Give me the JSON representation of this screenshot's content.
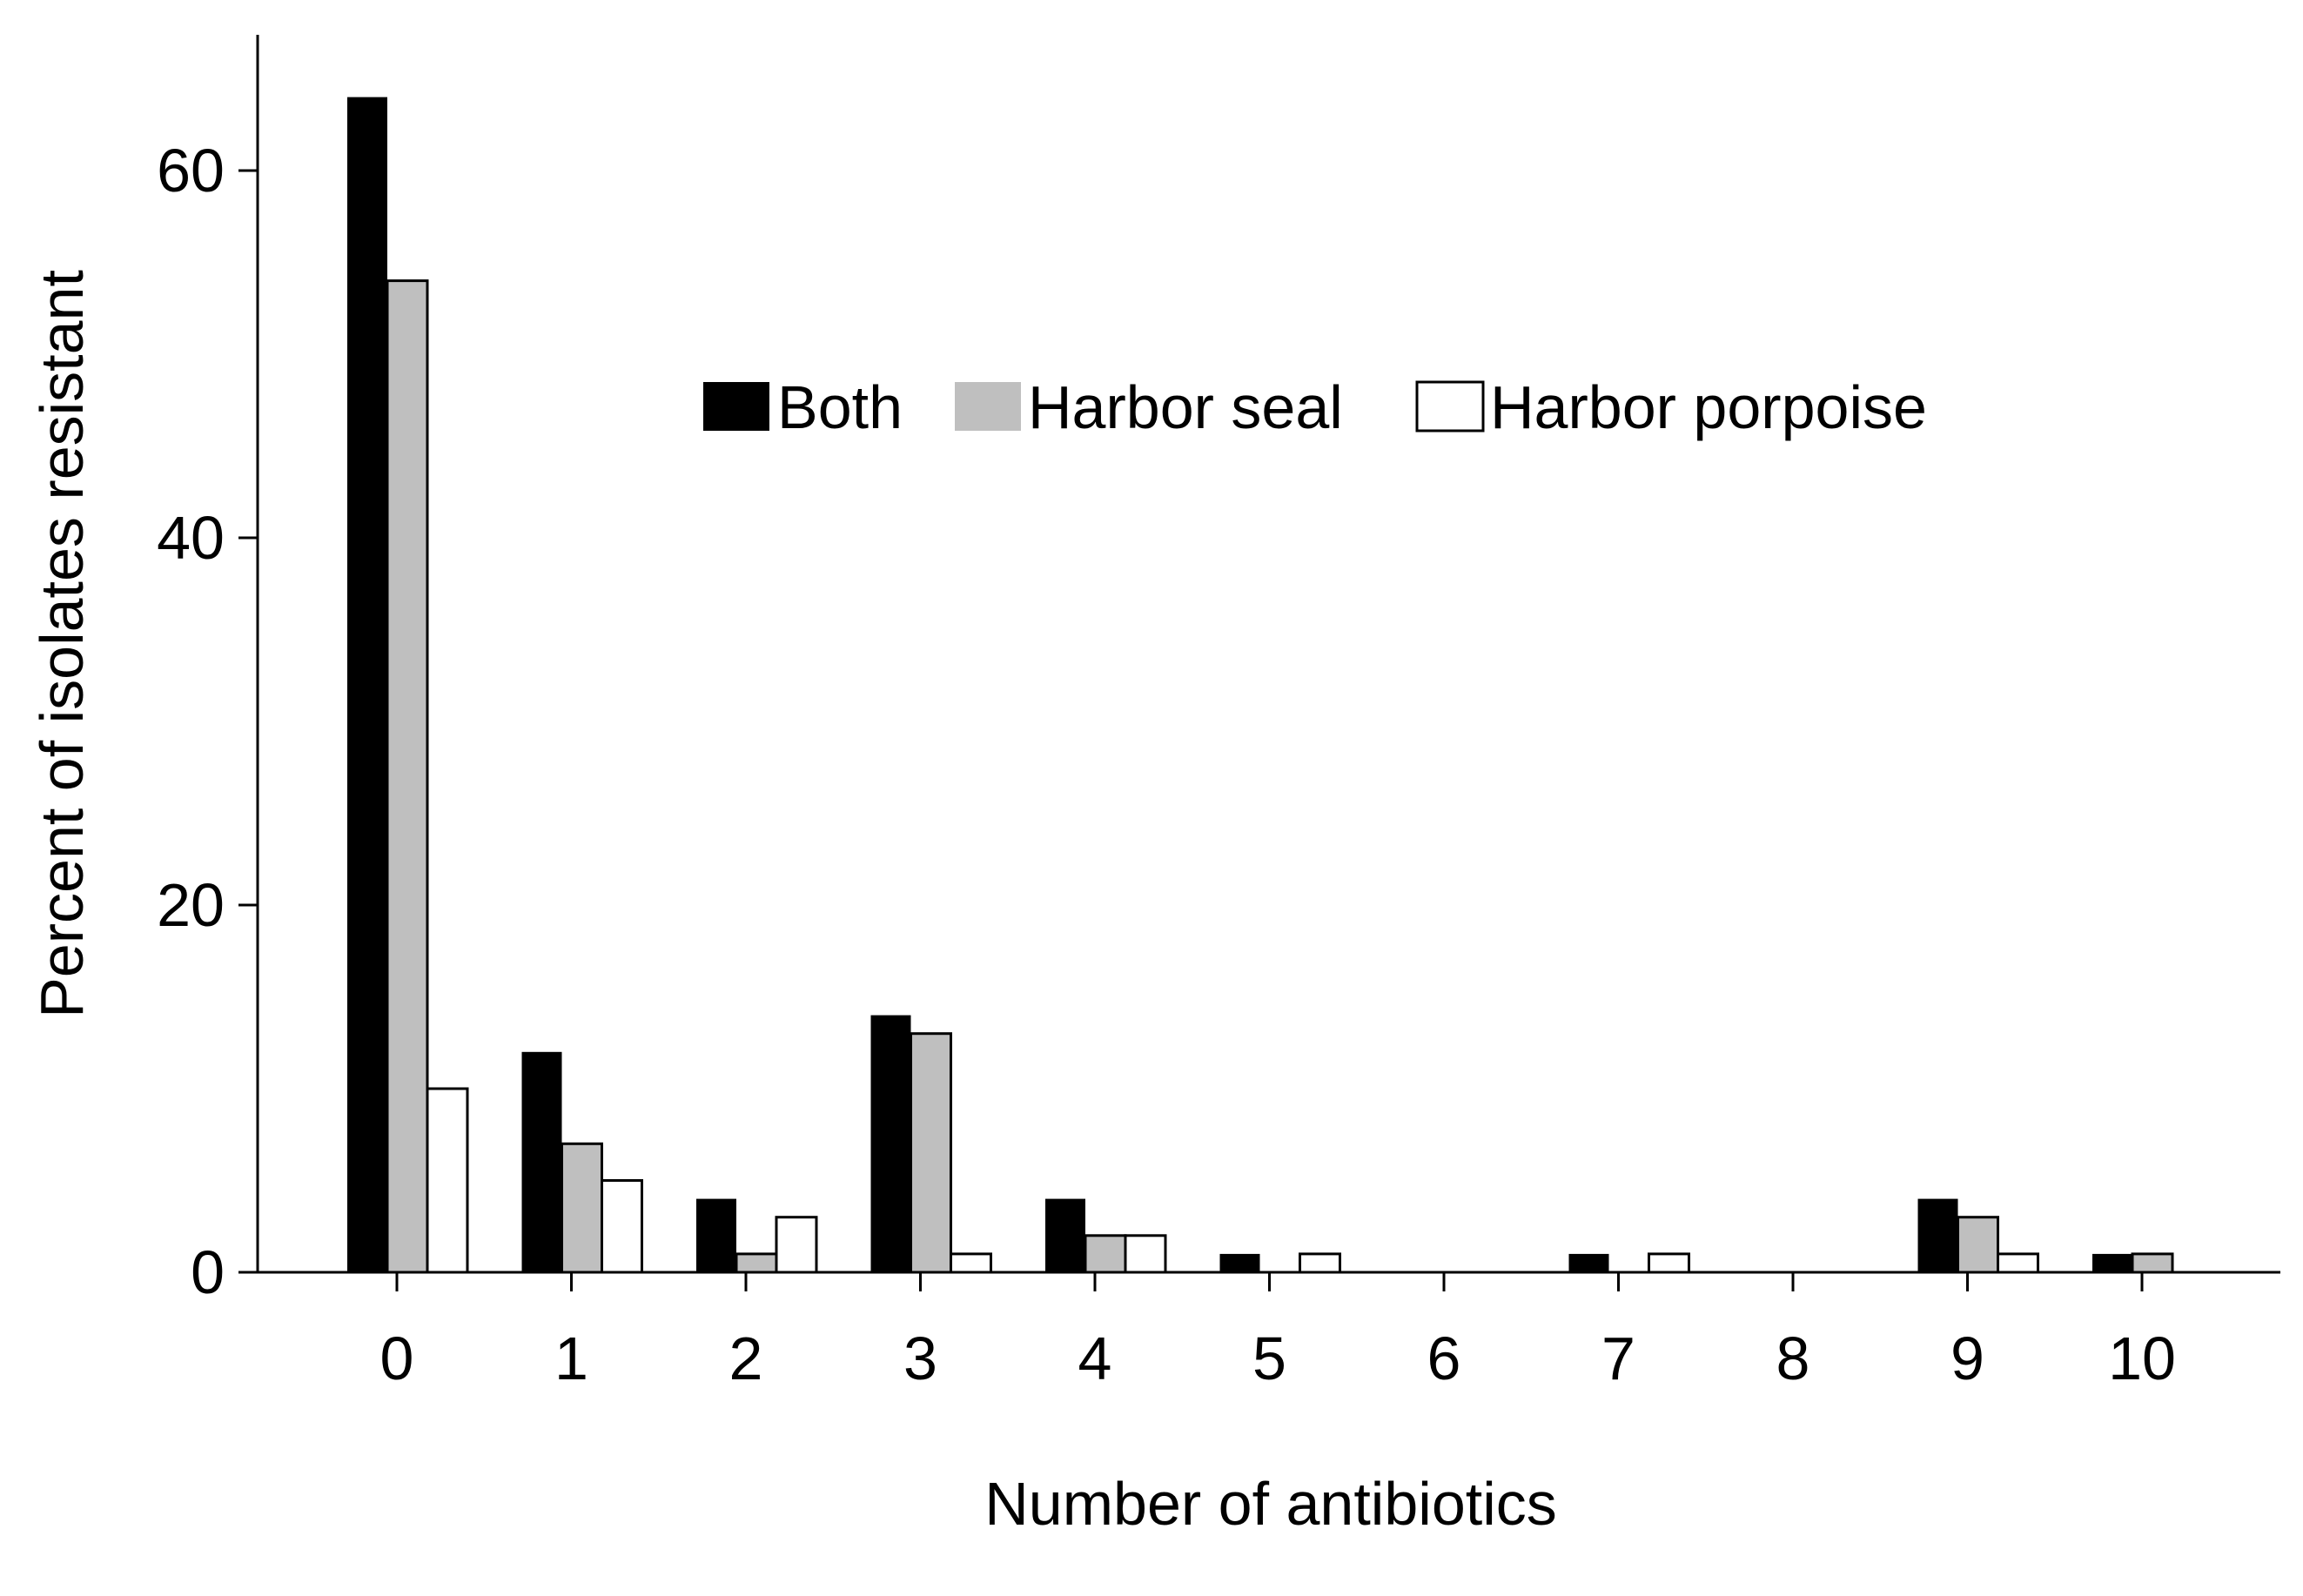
{
  "chart_data": {
    "type": "bar",
    "xlabel": "Number of antibiotics",
    "ylabel": "Percent of isolates resistant",
    "categories": [
      "0",
      "1",
      "2",
      "3",
      "4",
      "5",
      "6",
      "7",
      "8",
      "9",
      "10"
    ],
    "yticks": [
      "0",
      "20",
      "40",
      "60"
    ],
    "ylim": [
      0,
      67
    ],
    "legend_position": "top-center",
    "series": [
      {
        "name": "Both",
        "color": "#000000",
        "values": [
          64,
          12,
          4,
          14,
          4,
          1,
          0,
          1,
          0,
          4,
          1
        ]
      },
      {
        "name": "Harbor seal",
        "color": "#bfbfbf",
        "values": [
          54,
          7,
          1,
          13,
          2,
          0,
          0,
          0,
          0,
          3,
          1
        ]
      },
      {
        "name": "Harbor porpoise",
        "color": "#ffffff",
        "values": [
          10,
          5,
          3,
          1,
          2,
          1,
          0,
          1,
          0,
          1,
          0
        ]
      }
    ]
  }
}
